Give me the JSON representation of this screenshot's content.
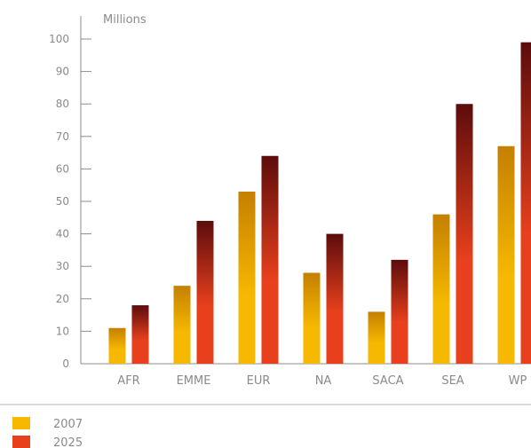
{
  "chart_data": {
    "type": "bar",
    "title": "",
    "xlabel": "",
    "ylabel": "",
    "unit": "Millions",
    "categories": [
      "AFR",
      "EMME",
      "EUR",
      "NA",
      "SACA",
      "SEA",
      "WP"
    ],
    "series": [
      {
        "name": "2007",
        "values": [
          11,
          24,
          53,
          28,
          16,
          46,
          67
        ],
        "color": "#f6b800",
        "color_top": "#c48000"
      },
      {
        "name": "2025",
        "values": [
          18,
          44,
          64,
          40,
          32,
          80,
          99
        ],
        "color": "#e8401c",
        "color_top": "#5c0c0c"
      }
    ],
    "ylim": [
      0,
      100
    ],
    "yticks": [
      0,
      10,
      20,
      30,
      40,
      50,
      60,
      70,
      80,
      90,
      100
    ],
    "grid": false,
    "legend": "bottom-left"
  }
}
